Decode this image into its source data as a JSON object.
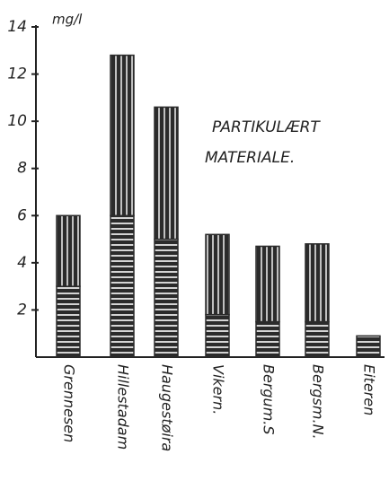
{
  "chart_data": {
    "type": "bar",
    "stacked": true,
    "title": [
      "PARTIKULÆRT",
      "MATERIALE."
    ],
    "y_unit": "mg/l",
    "categories": [
      "Grennesen",
      "Hillestadam",
      "Haugestøira",
      "Vikern.",
      "Bergum.S",
      "Bergsm.N.",
      "Eiteren"
    ],
    "series": [
      {
        "color": "#2b2b2b",
        "pattern": "horizontal",
        "values": [
          3,
          6,
          5,
          1.8,
          1.5,
          1.5,
          0.9
        ]
      },
      {
        "color": "#2b2b2b",
        "pattern": "vertical",
        "values": [
          3,
          6.8,
          5.6,
          3.4,
          3.2,
          3.3,
          null
        ]
      }
    ],
    "ylim": [
      0,
      14
    ],
    "yticks": [
      2,
      4,
      6,
      8,
      10,
      12,
      14
    ]
  }
}
